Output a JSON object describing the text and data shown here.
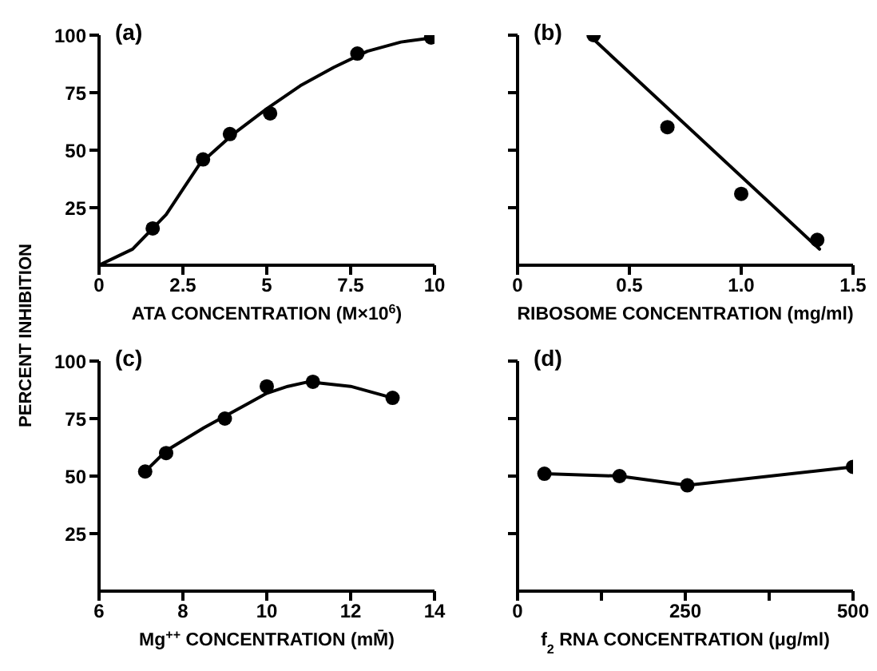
{
  "chart_data": [
    {
      "type": "scatter",
      "title": "(a)",
      "xlabel": "ATA CONCENTRATION   (M×10$^{6}$)",
      "ylabel": "PERCENT INHIBITION",
      "marker": "circle",
      "xlim": [
        0,
        10
      ],
      "xticks": [
        0,
        2.5,
        5,
        7.5,
        10
      ],
      "ylim": [
        0,
        100
      ],
      "yticks": [
        25,
        50,
        75,
        100
      ],
      "series": [
        {
          "color": "#000000",
          "x": [
            1.6,
            3.1,
            3.9,
            5.1,
            7.7,
            9.9
          ],
          "values": [
            16,
            46,
            57,
            66,
            92,
            99
          ]
        },
        {
          "type": "line",
          "color": "#000000",
          "marker": "none",
          "x": [
            0,
            1,
            2,
            2.5,
            3,
            4,
            5,
            6,
            7,
            8,
            9,
            10
          ],
          "values": [
            0,
            7,
            22,
            33,
            44,
            57,
            68,
            78,
            86,
            93,
            97,
            99
          ]
        }
      ]
    },
    {
      "type": "scatter",
      "title": "(b)",
      "xlabel": "RIBOSOME CONCENTRATION (mg/ml)",
      "marker": "circle",
      "xlim": [
        0,
        1.5
      ],
      "xticks": [
        0,
        0.5,
        {
          "value": 1,
          "label": "1.0"
        },
        1.5
      ],
      "ylim": [
        0,
        100
      ],
      "yticks": [
        {
          "value": 25,
          "label": null
        },
        {
          "value": 50,
          "label": null
        },
        {
          "value": 75,
          "label": null
        },
        {
          "value": 100,
          "label": null
        }
      ],
      "tick_labels": "x",
      "series": [
        {
          "color": "#000000",
          "x": [
            0.34,
            0.67,
            1.0,
            1.34
          ],
          "values": [
            100,
            60,
            31,
            11
          ]
        },
        {
          "type": "line",
          "color": "#000000",
          "marker": "none",
          "x": [
            0.32,
            1.35
          ],
          "values": [
            100,
            7
          ]
        }
      ]
    },
    {
      "type": "scatter",
      "title": "(c)",
      "xlabel": "Mg$^{++}$ CONCENTRATION (mM̄)",
      "marker": "circle",
      "xlim": [
        6,
        14
      ],
      "xticks": [
        6,
        8,
        10,
        12,
        14
      ],
      "ylim": [
        0,
        100
      ],
      "yticks": [
        25,
        50,
        75,
        100
      ],
      "series": [
        {
          "color": "#000000",
          "x": [
            7.1,
            7.6,
            9.0,
            10.0,
            11.1,
            13.0
          ],
          "values": [
            52,
            60,
            75,
            89,
            91,
            84
          ]
        },
        {
          "type": "line",
          "color": "#000000",
          "marker": "none",
          "x": [
            7.1,
            7.6,
            8.5,
            9.5,
            10,
            10.5,
            11,
            12,
            13
          ],
          "values": [
            52,
            61,
            71,
            81,
            86,
            89,
            91,
            89,
            84
          ]
        }
      ]
    },
    {
      "type": "line",
      "title": "(d)",
      "xlabel": "f$_{2}$ RNA CONCENTRATION (μg/ml)",
      "marker": "circle",
      "xlim": [
        0,
        500
      ],
      "xticks": [
        0,
        {
          "value": 125,
          "label": null
        },
        250,
        {
          "value": 375,
          "label": null
        },
        500
      ],
      "ylim": [
        0,
        100
      ],
      "yticks": [
        {
          "value": 25,
          "label": null
        },
        {
          "value": 50,
          "label": null
        },
        {
          "value": 75,
          "label": null
        },
        {
          "value": 100,
          "label": null
        }
      ],
      "tick_labels": "x",
      "series": [
        {
          "color": "#000000",
          "x": [
            40,
            152,
            253,
            500
          ],
          "values": [
            51,
            50,
            46,
            54
          ]
        }
      ]
    }
  ]
}
